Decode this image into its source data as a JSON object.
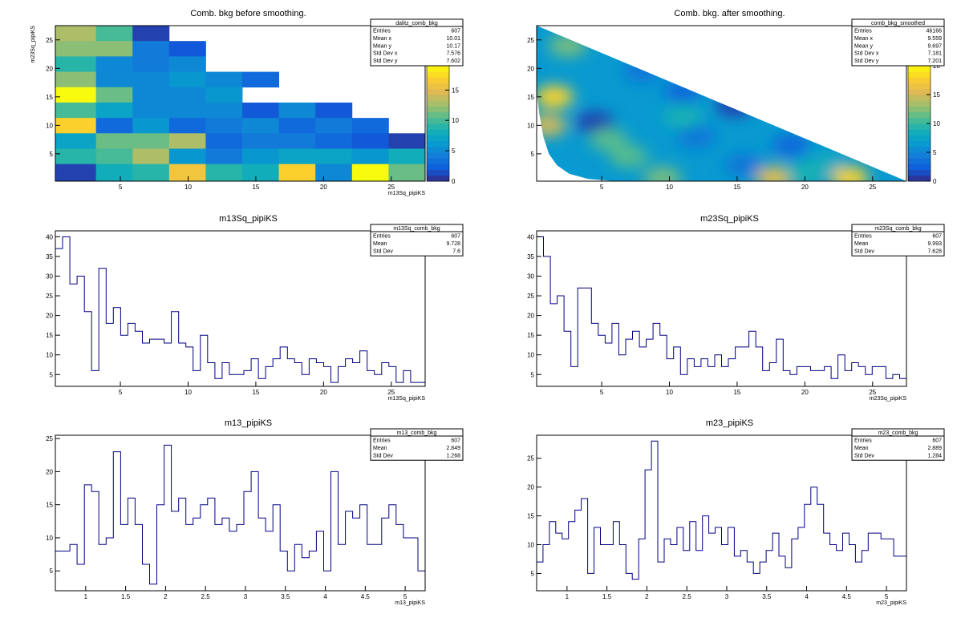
{
  "chart_data": [
    {
      "id": "p1",
      "type": "heatmap",
      "title": "Comb. bkg before smoothing.",
      "xlabel": "m13Sq_pipiKS",
      "ylabel": "m23Sq_pipiKS",
      "xlim": [
        0.2,
        27.5
      ],
      "ylim": [
        0.2,
        27.5
      ],
      "xticks": [
        5,
        10,
        15,
        20,
        25
      ],
      "yticks": [
        5,
        10,
        15,
        20,
        25
      ],
      "zlim": [
        0,
        19
      ],
      "zticks": [
        0,
        5,
        10,
        15
      ],
      "bin_edges": [
        0.2,
        3.2,
        5.9,
        8.6,
        11.3,
        14.0,
        16.7,
        19.4,
        22.1,
        24.8,
        27.5
      ],
      "bins_y_top_to_bottom": [
        [
          13,
          10,
          1,
          null,
          null,
          null,
          null,
          null,
          null,
          null
        ],
        [
          12,
          12,
          4,
          2,
          null,
          null,
          null,
          null,
          null,
          null
        ],
        [
          9,
          5,
          4,
          5,
          null,
          null,
          null,
          null,
          null,
          null
        ],
        [
          12,
          5,
          5,
          6,
          5,
          3,
          null,
          null,
          null,
          null
        ],
        [
          19,
          11,
          5,
          5,
          6,
          null,
          null,
          null,
          null,
          null
        ],
        [
          10,
          7,
          5,
          5,
          5,
          2,
          5,
          2,
          null,
          null
        ],
        [
          17,
          3,
          6,
          3,
          4,
          5,
          3,
          4,
          3,
          null
        ],
        [
          7,
          11,
          11,
          13,
          3,
          4,
          4,
          3,
          2,
          1
        ],
        [
          9,
          10,
          13,
          6,
          4,
          6,
          7,
          7,
          6,
          8
        ],
        [
          1,
          8,
          9,
          16,
          9,
          8,
          17,
          5,
          19,
          11
        ]
      ],
      "stats": {
        "name": "dalitz_comb_bkg",
        "rows": [
          {
            "label": "Entries",
            "value": "607"
          },
          {
            "label": "Mean x",
            "value": "10.01"
          },
          {
            "label": "Mean y",
            "value": "10.17"
          },
          {
            "label": "Std Dev x",
            "value": "7.576"
          },
          {
            "label": "Std Dev y",
            "value": "7.602"
          }
        ]
      }
    },
    {
      "id": "p2",
      "type": "heatmap",
      "title": "Comb. bkg. after smoothing.",
      "xlabel": "",
      "ylabel": "",
      "xlim": [
        0.2,
        27.5
      ],
      "ylim": [
        0.2,
        27.5
      ],
      "xticks": [
        5,
        10,
        15,
        20,
        25
      ],
      "yticks": [
        5,
        10,
        15,
        20,
        25
      ],
      "zlim": [
        0,
        20
      ],
      "zticks": [
        0,
        5,
        10,
        15,
        20
      ],
      "background_level": 6.5,
      "boundary": [
        [
          0.2,
          27.5
        ],
        [
          27.5,
          0.2
        ],
        [
          6.0,
          0.2
        ],
        [
          4.0,
          0.6
        ],
        [
          2.6,
          1.5
        ],
        [
          1.7,
          3.0
        ],
        [
          1.1,
          5.0
        ],
        [
          0.7,
          8.0
        ],
        [
          0.4,
          12.0
        ],
        [
          0.2,
          16.0
        ]
      ],
      "blobs": [
        {
          "x": 1.5,
          "y": 15.0,
          "value": 18
        },
        {
          "x": 1.0,
          "y": 10.0,
          "value": 15
        },
        {
          "x": 23.3,
          "y": 0.8,
          "value": 18
        },
        {
          "x": 17.8,
          "y": 0.8,
          "value": 16
        },
        {
          "x": 9.5,
          "y": 0.8,
          "value": 12
        },
        {
          "x": 4.5,
          "y": 10.5,
          "value": 1
        },
        {
          "x": 14.8,
          "y": 13.5,
          "value": 1
        },
        {
          "x": 11.0,
          "y": 16.0,
          "value": 3
        },
        {
          "x": 19.0,
          "y": 6.5,
          "value": 3
        },
        {
          "x": 12.0,
          "y": 8.0,
          "value": 4
        },
        {
          "x": 8.0,
          "y": 19.5,
          "value": 4
        },
        {
          "x": 15.5,
          "y": 3.0,
          "value": 4
        },
        {
          "x": 2.5,
          "y": 24.0,
          "value": 12
        },
        {
          "x": 7.0,
          "y": 4.5,
          "value": 11
        },
        {
          "x": 5.5,
          "y": 7.5,
          "value": 11
        },
        {
          "x": 11.0,
          "y": 11.5,
          "value": 9
        },
        {
          "x": 21.5,
          "y": 3.5,
          "value": 8
        },
        {
          "x": 20.0,
          "y": 1.5,
          "value": 9
        }
      ],
      "stats": {
        "name": "comb_bkg_smoothed",
        "rows": [
          {
            "label": "Entries",
            "value": "46166"
          },
          {
            "label": "Mean x",
            "value": "9.559"
          },
          {
            "label": "Mean y",
            "value": "9.697"
          },
          {
            "label": "Std Dev x",
            "value": "7.181"
          },
          {
            "label": "Std Dev y",
            "value": "7.201"
          }
        ]
      }
    },
    {
      "id": "p3",
      "type": "histogram",
      "title": "m13Sq_pipiKS",
      "xlabel": "m13Sq_pipiKS",
      "ylabel": "",
      "xlim": [
        0.2,
        27.5
      ],
      "ylim": [
        2,
        41.5
      ],
      "xticks": [
        5,
        10,
        15,
        20,
        25
      ],
      "yticks": [
        5,
        10,
        15,
        20,
        25,
        30,
        35,
        40
      ],
      "values": [
        37,
        40,
        28,
        30,
        21,
        6,
        32,
        18,
        22,
        15,
        18,
        16,
        13,
        14,
        14,
        13,
        21,
        13,
        12,
        6,
        15,
        8,
        4,
        8,
        5,
        5,
        6,
        9,
        4,
        7,
        9,
        12,
        9,
        8,
        5,
        9,
        8,
        7,
        3,
        7,
        9,
        8,
        11,
        6,
        5,
        8,
        7,
        3,
        6,
        3,
        3
      ],
      "stats": {
        "name": "m13Sq_comb_bkg",
        "rows": [
          {
            "label": "Entries",
            "value": "607"
          },
          {
            "label": "Mean",
            "value": "9.728"
          },
          {
            "label": "Std Dev",
            "value": "7.6"
          }
        ]
      }
    },
    {
      "id": "p4",
      "type": "histogram",
      "title": "m23Sq_pipiKS",
      "xlabel": "m23Sq_pipiKS",
      "ylabel": "",
      "xlim": [
        0.2,
        27.5
      ],
      "ylim": [
        2,
        41.5
      ],
      "xticks": [
        5,
        10,
        15,
        20,
        25
      ],
      "yticks": [
        5,
        10,
        15,
        20,
        25,
        30,
        35,
        40
      ],
      "values": [
        40,
        35,
        23,
        25,
        16,
        7,
        27,
        27,
        18,
        15,
        13,
        18,
        10,
        14,
        16,
        12,
        14,
        18,
        15,
        9,
        12,
        5,
        9,
        7,
        9,
        7,
        10,
        7,
        9,
        12,
        12,
        16,
        12,
        6,
        8,
        14,
        6,
        5,
        7,
        7,
        6,
        6,
        7,
        4,
        10,
        6,
        8,
        7,
        5,
        7,
        7,
        4,
        5,
        4
      ],
      "stats": {
        "name": "m23Sq_comb_bkg",
        "rows": [
          {
            "label": "Entries",
            "value": "607"
          },
          {
            "label": "Mean",
            "value": "9.993"
          },
          {
            "label": "Std Dev",
            "value": "7.628"
          }
        ]
      }
    },
    {
      "id": "p5",
      "type": "histogram",
      "title": "m13_pipiKS",
      "xlabel": "m13_pipiKS",
      "ylabel": "",
      "xlim": [
        0.62,
        5.25
      ],
      "ylim": [
        2,
        25.5
      ],
      "xticks": [
        1,
        1.5,
        2,
        2.5,
        3,
        3.5,
        4,
        4.5,
        5
      ],
      "yticks": [
        5,
        10,
        15,
        20,
        25
      ],
      "values": [
        8,
        8,
        9,
        6,
        18,
        17,
        9,
        10,
        23,
        12,
        16,
        12,
        6,
        3,
        15,
        24,
        14,
        16,
        12,
        13,
        15,
        16,
        12,
        13,
        11,
        12,
        17,
        20,
        13,
        11,
        15,
        8,
        5,
        9,
        7,
        8,
        11,
        5,
        20,
        9,
        14,
        13,
        15,
        9,
        9,
        13,
        15,
        12,
        10,
        10,
        5
      ],
      "stats": {
        "name": "m13_comb_bkg",
        "rows": [
          {
            "label": "Entries",
            "value": "607"
          },
          {
            "label": "Mean",
            "value": "2.849"
          },
          {
            "label": "Std Dev",
            "value": "1.268"
          }
        ]
      }
    },
    {
      "id": "p6",
      "type": "histogram",
      "title": "m23_pipiKS",
      "xlabel": "m23_pipiKS",
      "ylabel": "",
      "xlim": [
        0.62,
        5.25
      ],
      "ylim": [
        2,
        29
      ],
      "xticks": [
        1,
        1.5,
        2,
        2.5,
        3,
        3.5,
        4,
        4.5,
        5
      ],
      "yticks": [
        5,
        10,
        15,
        20,
        25
      ],
      "values": [
        7,
        10,
        14,
        12,
        11,
        14,
        16,
        18,
        5,
        13,
        10,
        10,
        14,
        10,
        5,
        4,
        11,
        23,
        28,
        7,
        11,
        10,
        13,
        9,
        14,
        9,
        15,
        12,
        13,
        10,
        13,
        8,
        9,
        7,
        5,
        7,
        9,
        12,
        8,
        6,
        11,
        13,
        17,
        20,
        17,
        12,
        10,
        9,
        12,
        10,
        7,
        9,
        12,
        12,
        11,
        11,
        8,
        8
      ],
      "stats": {
        "name": "m23_comb_bkg",
        "rows": [
          {
            "label": "Entries",
            "value": "607"
          },
          {
            "label": "Mean",
            "value": "2.889"
          },
          {
            "label": "Std Dev",
            "value": "1.284"
          }
        ]
      }
    }
  ]
}
